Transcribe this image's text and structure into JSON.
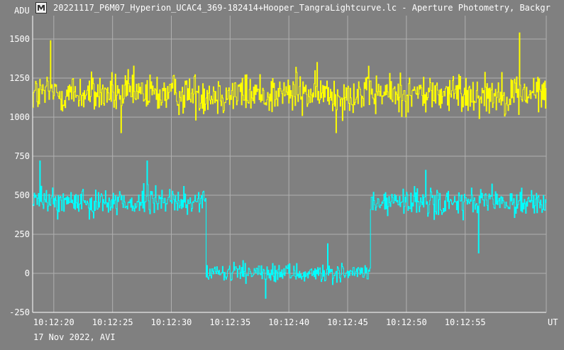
{
  "window": {
    "title": "20221117_P6M07_Hyperion_UCAC4_369-182414+Hooper_TangraLightcurve.lc - Aperture Photometry, Backgr",
    "icon": "lightcurve-app-icon"
  },
  "footer_note": "17 Nov 2022, AVI",
  "colors": {
    "background": "#808080",
    "grid": "#b0b0b0",
    "series1": "#ffff00",
    "series2": "#00ffff",
    "text": "#ffffff"
  },
  "chart_data": {
    "type": "line",
    "ylabel": "ADU",
    "xlabel": "UT",
    "ylim": [
      -250,
      1650
    ],
    "y_ticks": [
      -250,
      0,
      250,
      500,
      750,
      1000,
      1250,
      1500
    ],
    "x_tick_labels": [
      "10:12:20",
      "10:12:25",
      "10:12:30",
      "10:12:35",
      "10:12:40",
      "10:12:45",
      "10:12:50",
      "10:12:55"
    ],
    "x_tick_seconds": [
      20,
      25,
      30,
      35,
      40,
      45,
      50,
      55
    ],
    "xlim_seconds": [
      18.2,
      61.9
    ],
    "grid": true,
    "series": [
      {
        "color": "#ffff00",
        "description_values": "comparison star, steady flux",
        "segments": [
          {
            "x_start": 18.2,
            "x_end": 61.9,
            "mean": 1150,
            "noise": 120
          }
        ],
        "extremes": [
          {
            "x": 19.7,
            "y": 1490
          },
          {
            "x": 25.7,
            "y": 900
          },
          {
            "x": 40.6,
            "y": 1320
          },
          {
            "x": 44.0,
            "y": 900
          },
          {
            "x": 59.6,
            "y": 1540
          },
          {
            "x": 58.8,
            "y": 1080
          }
        ]
      },
      {
        "color": "#00ffff",
        "description_values": "target star with occultation drop",
        "segments": [
          {
            "x_start": 18.2,
            "x_end": 32.9,
            "mean": 460,
            "noise": 80
          },
          {
            "x_start": 32.9,
            "x_end": 46.9,
            "mean": 0,
            "noise": 55
          },
          {
            "x_start": 46.9,
            "x_end": 61.9,
            "mean": 450,
            "noise": 80
          }
        ],
        "extremes": [
          {
            "x": 18.8,
            "y": 720
          },
          {
            "x": 27.9,
            "y": 720
          },
          {
            "x": 51.6,
            "y": 660
          },
          {
            "x": 56.1,
            "y": 130
          },
          {
            "x": 38.0,
            "y": -160
          },
          {
            "x": 43.3,
            "y": 190
          }
        ]
      }
    ]
  }
}
